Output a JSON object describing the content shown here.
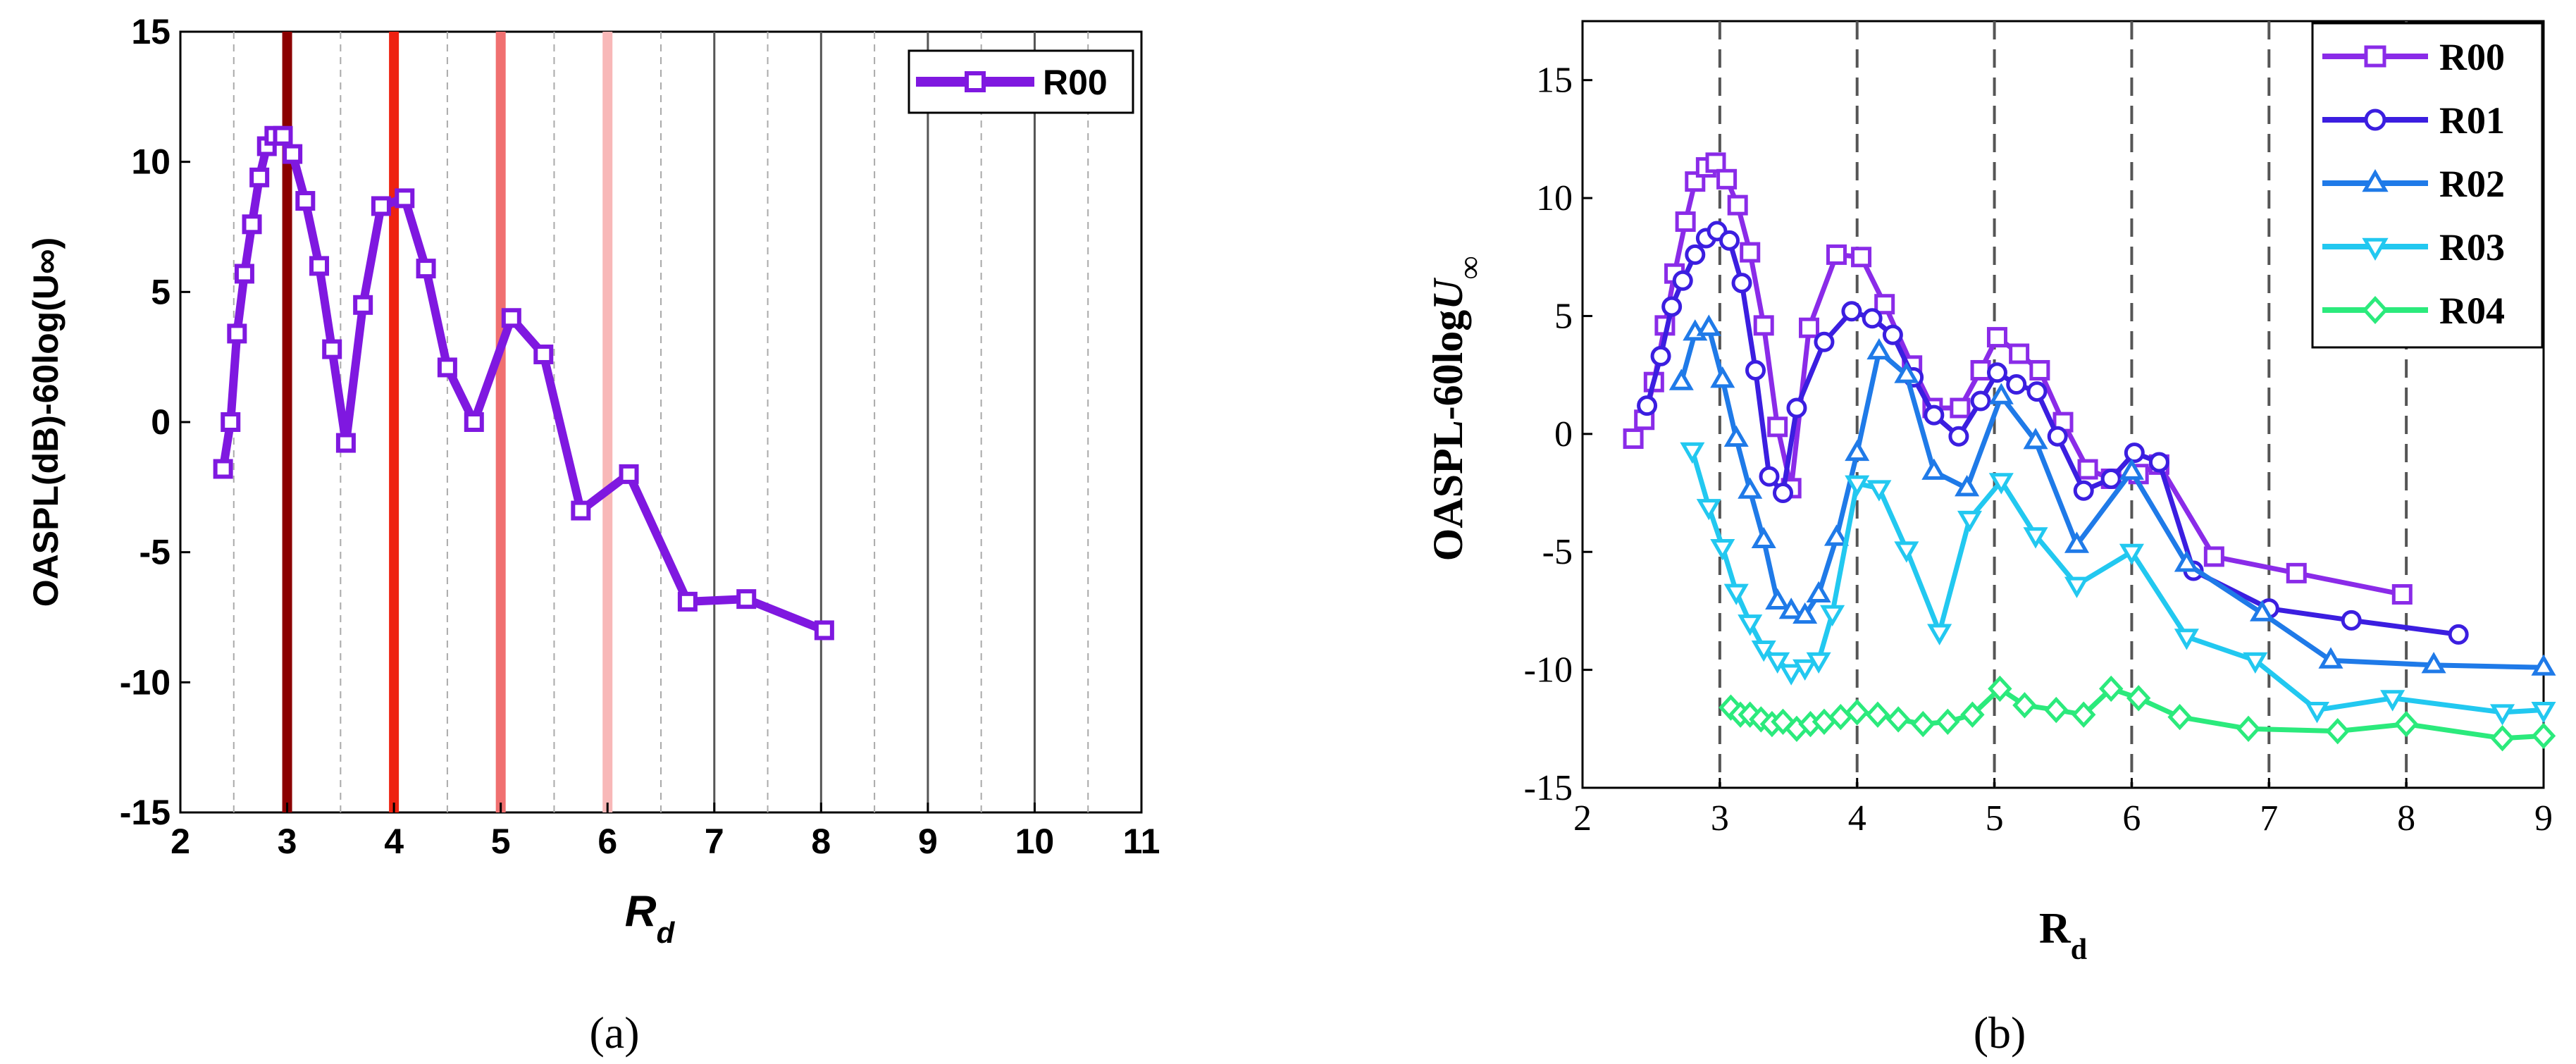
{
  "chart_data": [
    {
      "id": "a",
      "type": "line",
      "caption": "(a)",
      "ylabel": "OASPL(dB)-60log(U∞)",
      "xlabel": "R",
      "xlabel_sub": "d",
      "xlim": [
        2,
        11
      ],
      "ylim": [
        -15,
        15
      ],
      "xticks": [
        2,
        3,
        4,
        5,
        6,
        7,
        8,
        9,
        10,
        11
      ],
      "yticks": [
        -15,
        -10,
        -5,
        0,
        5,
        10,
        15
      ],
      "legend_position": "top-right",
      "vlines": [
        {
          "x": 3,
          "color": "#8b0000"
        },
        {
          "x": 4,
          "color": "#ee2211"
        },
        {
          "x": 5,
          "color": "#f07070"
        },
        {
          "x": 6,
          "color": "#f8b8b8"
        },
        {
          "x": 7,
          "color": "#555555"
        },
        {
          "x": 8,
          "color": "#555555"
        },
        {
          "x": 9,
          "color": "#555555"
        },
        {
          "x": 10,
          "color": "#555555"
        }
      ],
      "series": [
        {
          "name": "R00",
          "color": "#7f18e0",
          "marker": "square",
          "x": [
            2.4,
            2.47,
            2.53,
            2.6,
            2.67,
            2.74,
            2.81,
            2.88,
            2.96,
            3.05,
            3.17,
            3.3,
            3.42,
            3.55,
            3.71,
            3.88,
            4.1,
            4.3,
            4.5,
            4.75,
            5.1,
            5.4,
            5.75,
            6.2,
            6.75,
            7.3,
            8.03
          ],
          "y": [
            -1.8,
            0.0,
            3.4,
            5.7,
            7.6,
            9.4,
            10.6,
            11.0,
            11.0,
            10.3,
            8.5,
            6.0,
            2.8,
            -0.8,
            4.5,
            8.3,
            8.6,
            5.9,
            2.1,
            0.0,
            4.0,
            2.6,
            -3.4,
            -2.0,
            -6.9,
            -6.8,
            -8.0
          ]
        }
      ]
    },
    {
      "id": "b",
      "type": "line",
      "caption": "(b)",
      "ylabel": "OASPL-60log",
      "ylabel_var": "U",
      "ylabel_sub": "∞",
      "xlabel": "R",
      "xlabel_sub": "d",
      "xlim": [
        2,
        9
      ],
      "ylim": [
        -15,
        17.5
      ],
      "xticks": [
        2,
        3,
        4,
        5,
        6,
        7,
        8,
        9
      ],
      "yticks": [
        -15,
        -10,
        -5,
        0,
        5,
        10,
        15
      ],
      "vlines_dashed": [
        3,
        4,
        5,
        6,
        7,
        8
      ],
      "legend_position": "top-right",
      "series": [
        {
          "name": "R00",
          "color": "#8a2be8",
          "marker": "square",
          "x": [
            2.37,
            2.45,
            2.52,
            2.6,
            2.67,
            2.75,
            2.82,
            2.9,
            2.97,
            3.05,
            3.13,
            3.22,
            3.32,
            3.42,
            3.52,
            3.65,
            3.85,
            4.03,
            4.2,
            4.4,
            4.55,
            4.75,
            4.9,
            5.02,
            5.18,
            5.33,
            5.5,
            5.68,
            5.85,
            6.05,
            6.2,
            6.6,
            7.2,
            7.97
          ],
          "y": [
            -0.2,
            0.6,
            2.2,
            4.6,
            6.8,
            9.0,
            10.7,
            11.3,
            11.5,
            10.8,
            9.7,
            7.7,
            4.6,
            0.3,
            -2.3,
            4.5,
            7.6,
            7.5,
            5.5,
            2.9,
            1.1,
            1.1,
            2.7,
            4.1,
            3.4,
            2.7,
            0.5,
            -1.5,
            -1.9,
            -1.7,
            -1.3,
            -5.2,
            -5.9,
            -6.8
          ]
        },
        {
          "name": "R01",
          "color": "#3b1ee0",
          "marker": "circle",
          "x": [
            2.47,
            2.57,
            2.65,
            2.73,
            2.82,
            2.9,
            2.98,
            3.07,
            3.16,
            3.26,
            3.36,
            3.46,
            3.56,
            3.76,
            3.96,
            4.11,
            4.26,
            4.41,
            4.56,
            4.74,
            4.9,
            5.02,
            5.16,
            5.31,
            5.46,
            5.65,
            5.85,
            6.02,
            6.2,
            6.45,
            7.0,
            7.6,
            8.38
          ],
          "y": [
            1.2,
            3.3,
            5.4,
            6.5,
            7.6,
            8.3,
            8.6,
            8.2,
            6.4,
            2.7,
            -1.8,
            -2.5,
            1.1,
            3.9,
            5.2,
            4.9,
            4.2,
            2.4,
            0.8,
            -0.1,
            1.4,
            2.6,
            2.1,
            1.8,
            -0.1,
            -2.4,
            -1.9,
            -0.8,
            -1.2,
            -5.8,
            -7.4,
            -7.9,
            -8.5
          ]
        },
        {
          "name": "R02",
          "color": "#1f7ae8",
          "marker": "triangle",
          "x": [
            2.72,
            2.82,
            2.92,
            3.02,
            3.12,
            3.22,
            3.32,
            3.42,
            3.52,
            3.62,
            3.72,
            3.85,
            4.0,
            4.16,
            4.36,
            4.56,
            4.8,
            5.05,
            5.3,
            5.6,
            6.0,
            6.4,
            6.95,
            7.45,
            8.2,
            9.0
          ],
          "y": [
            2.2,
            4.3,
            4.5,
            2.3,
            -0.2,
            -2.4,
            -4.5,
            -7.1,
            -7.5,
            -7.7,
            -6.8,
            -4.4,
            -0.8,
            3.5,
            2.5,
            -1.6,
            -2.3,
            1.6,
            -0.3,
            -4.7,
            -1.6,
            -5.5,
            -7.6,
            -9.6,
            -9.8,
            -9.9
          ]
        },
        {
          "name": "R03",
          "color": "#22c8f0",
          "marker": "triangle-down",
          "x": [
            2.8,
            2.92,
            3.02,
            3.12,
            3.22,
            3.32,
            3.42,
            3.52,
            3.62,
            3.72,
            3.82,
            4.0,
            4.16,
            4.36,
            4.6,
            4.82,
            5.05,
            5.3,
            5.6,
            6.0,
            6.4,
            6.9,
            7.35,
            7.9,
            8.7,
            9.0
          ],
          "y": [
            -0.7,
            -3.1,
            -4.8,
            -6.7,
            -8.0,
            -9.1,
            -9.6,
            -10.1,
            -9.9,
            -9.6,
            -7.6,
            -2.1,
            -2.3,
            -4.9,
            -8.4,
            -3.6,
            -2.0,
            -4.3,
            -6.4,
            -5.0,
            -8.6,
            -9.6,
            -11.7,
            -11.2,
            -11.8,
            -11.7
          ]
        },
        {
          "name": "R04",
          "color": "#2bea7c",
          "marker": "diamond",
          "x": [
            3.08,
            3.15,
            3.22,
            3.3,
            3.38,
            3.46,
            3.56,
            3.66,
            3.76,
            3.88,
            4.0,
            4.15,
            4.3,
            4.48,
            4.66,
            4.84,
            5.04,
            5.22,
            5.45,
            5.65,
            5.85,
            6.05,
            6.35,
            6.85,
            7.5,
            8.0,
            8.7,
            9.0
          ],
          "y": [
            -11.6,
            -11.9,
            -11.9,
            -12.1,
            -12.3,
            -12.2,
            -12.5,
            -12.3,
            -12.2,
            -12.0,
            -11.8,
            -11.9,
            -12.1,
            -12.3,
            -12.2,
            -11.9,
            -10.8,
            -11.5,
            -11.7,
            -11.9,
            -10.8,
            -11.2,
            -12.0,
            -12.5,
            -12.6,
            -12.3,
            -12.9,
            -12.8
          ]
        }
      ]
    }
  ]
}
